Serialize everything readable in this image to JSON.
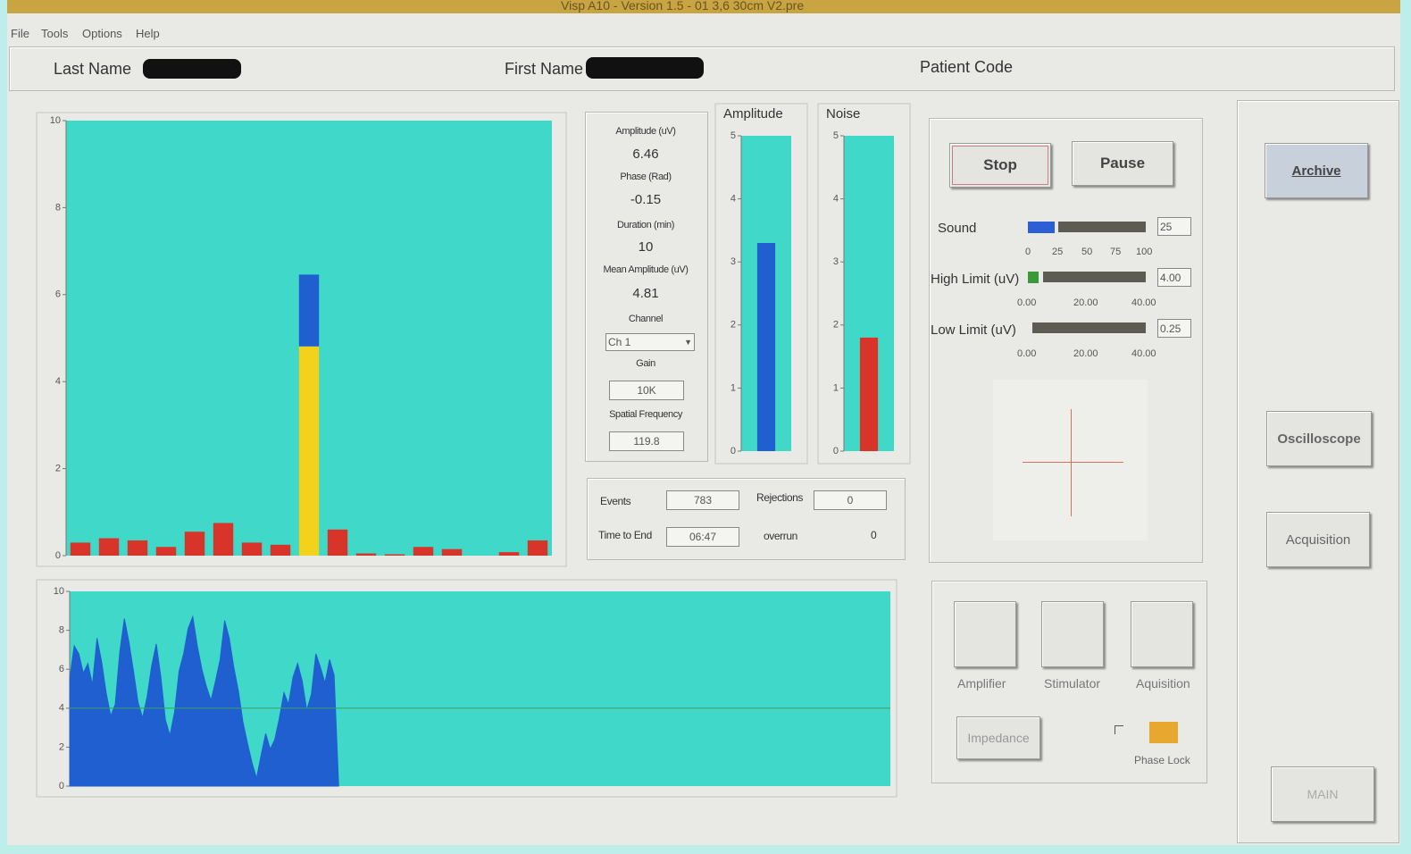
{
  "window": {
    "title": "Visp A10 - Version 1.5 - 01 3,6 30cm V2.pre"
  },
  "menu": [
    "File",
    "Tools",
    "Options",
    "Help"
  ],
  "header": {
    "last_name_label": "Last Name",
    "first_name_label": "First Name",
    "patient_code_label": "Patient Code"
  },
  "chart_data": [
    {
      "type": "bar",
      "stacked": true,
      "ylim": [
        0,
        10
      ],
      "yticks": [
        0,
        2,
        4,
        6,
        8,
        10
      ],
      "series": [
        {
          "color": "#d8342a",
          "values": [
            0.3,
            0.4,
            0.35,
            0.2,
            0.55,
            0.75,
            0.3,
            0.25,
            null,
            0.6,
            0.05,
            0.03,
            0.2,
            0.15,
            0,
            0.08,
            0.35
          ]
        },
        {
          "color": "#f2d21a",
          "values": [
            null,
            null,
            null,
            null,
            null,
            null,
            null,
            null,
            4.81,
            null,
            null,
            null,
            null,
            null,
            null,
            null,
            null
          ]
        },
        {
          "color": "#1f5fd0",
          "values": [
            null,
            null,
            null,
            null,
            null,
            null,
            null,
            null,
            1.65,
            null,
            null,
            null,
            null,
            null,
            null,
            null,
            null
          ]
        }
      ]
    },
    {
      "type": "bar",
      "title": "Amplitude",
      "ylim": [
        0,
        5
      ],
      "yticks": [
        0,
        1,
        2,
        3,
        4,
        5
      ],
      "values": [
        3.3
      ],
      "color": "#1f5fd0"
    },
    {
      "type": "bar",
      "title": "Noise",
      "ylim": [
        0,
        5
      ],
      "yticks": [
        0,
        1,
        2,
        3,
        4,
        5
      ],
      "values": [
        1.8
      ],
      "color": "#d8342a"
    },
    {
      "type": "area",
      "ylim": [
        0,
        10
      ],
      "yticks": [
        0,
        2,
        4,
        6,
        8,
        10
      ],
      "xlim": [
        0,
        180
      ],
      "color": "#1f5fd0",
      "threshold": 4,
      "threshold_color": "#3aa060",
      "values": [
        5.5,
        7.2,
        6.8,
        5.8,
        6.3,
        5.2,
        7.6,
        6.4,
        4.8,
        3.6,
        4.2,
        6.9,
        8.6,
        7.4,
        5.9,
        4.3,
        3.5,
        4.6,
        6.2,
        7.3,
        5.6,
        3.4,
        2.6,
        3.8,
        5.9,
        6.8,
        8.1,
        8.7,
        7.2,
        6.0,
        5.1,
        4.4,
        5.4,
        6.5,
        8.5,
        7.6,
        6.1,
        4.9,
        3.3,
        2.2,
        1.2,
        0.4,
        1.6,
        2.7,
        1.9,
        2.4,
        3.5,
        4.8,
        4.2,
        5.6,
        6.3,
        5.4,
        3.9,
        4.7,
        6.8,
        6.1,
        5.3,
        6.5,
        5.7,
        0
      ]
    }
  ],
  "readouts": [
    {
      "label": "Amplitude (uV)",
      "value": 6.46
    },
    {
      "label": "Phase (Rad)",
      "value": -0.15
    },
    {
      "label": "Duration (min)",
      "value": 10
    },
    {
      "label": "Mean Amplitude (uV)",
      "value": 4.81
    },
    {
      "label": "Channel",
      "value": "Ch 1"
    },
    {
      "label": "Gain",
      "value": "10K"
    },
    {
      "label": "Spatial Frequency",
      "value": 119.8
    }
  ],
  "counters": {
    "events_label": "Events",
    "events": 783,
    "rejections_label": "Rejections",
    "rejections": 0,
    "time_to_end_label": "Time to End",
    "time_to_end": "06:47",
    "overrun_label": "overrun",
    "overrun": 0
  },
  "controls": {
    "stop": "Stop",
    "pause": "Pause",
    "archive": "Archive",
    "oscilloscope": "Oscilloscope",
    "acquisition": "Acquisition",
    "main": "MAIN"
  },
  "sliders": [
    {
      "label": "Sound",
      "value": "25",
      "ticks": [
        "0",
        "25",
        "50",
        "75",
        "100"
      ]
    },
    {
      "label": "High Limit (uV)",
      "value": "4.00",
      "ticks": [
        "0.00",
        "20.00",
        "40.00"
      ]
    },
    {
      "label": "Low Limit (uV)",
      "value": "0.25",
      "ticks": [
        "0.00",
        "20.00",
        "40.00"
      ]
    }
  ],
  "modules": [
    "Amplifier",
    "Stimulator",
    "Aquisition"
  ],
  "impedance": "Impedance",
  "phase_lock": "Phase Lock"
}
